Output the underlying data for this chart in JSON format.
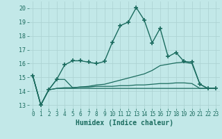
{
  "xlabel": "Humidex (Indice chaleur)",
  "background_color": "#c2e8e8",
  "grid_color": "#aad0d0",
  "line_color": "#1a6b5e",
  "xlim": [
    -0.5,
    23.5
  ],
  "ylim": [
    12.75,
    20.5
  ],
  "xticks": [
    0,
    1,
    2,
    3,
    4,
    5,
    6,
    7,
    8,
    9,
    10,
    11,
    12,
    13,
    14,
    15,
    16,
    17,
    18,
    19,
    20,
    21,
    22,
    23
  ],
  "yticks": [
    13,
    14,
    15,
    16,
    17,
    18,
    19,
    20
  ],
  "series": [
    {
      "x": [
        0,
        1,
        2,
        3,
        4,
        5,
        6,
        7,
        8,
        9,
        10,
        11,
        12,
        13,
        14,
        15,
        16,
        17,
        18,
        19,
        20,
        21,
        22,
        23
      ],
      "y": [
        15.1,
        13.0,
        14.1,
        14.85,
        15.9,
        16.2,
        16.2,
        16.1,
        16.0,
        16.15,
        17.55,
        18.75,
        19.0,
        20.05,
        19.15,
        17.5,
        18.55,
        16.5,
        16.8,
        16.15,
        16.1,
        14.5,
        14.2,
        14.2
      ],
      "marker": "+",
      "markersize": 4,
      "linewidth": 1.0,
      "markeredgewidth": 1.2
    },
    {
      "x": [
        0,
        1,
        2,
        3,
        4,
        5,
        6,
        7,
        8,
        9,
        10,
        11,
        12,
        13,
        14,
        15,
        16,
        17,
        18,
        19,
        20,
        21,
        22,
        23
      ],
      "y": [
        15.1,
        13.0,
        14.1,
        14.85,
        14.85,
        14.25,
        14.3,
        14.35,
        14.45,
        14.5,
        14.65,
        14.8,
        14.95,
        15.1,
        15.25,
        15.5,
        15.85,
        15.95,
        16.05,
        16.1,
        16.0,
        14.5,
        14.2,
        14.2
      ],
      "marker": null,
      "markersize": 0,
      "linewidth": 0.9,
      "markeredgewidth": 1.0
    },
    {
      "x": [
        0,
        1,
        2,
        3,
        4,
        5,
        6,
        7,
        8,
        9,
        10,
        11,
        12,
        13,
        14,
        15,
        16,
        17,
        18,
        19,
        20,
        21,
        22,
        23
      ],
      "y": [
        15.1,
        13.0,
        14.1,
        14.2,
        14.25,
        14.25,
        14.3,
        14.3,
        14.35,
        14.35,
        14.35,
        14.4,
        14.4,
        14.45,
        14.45,
        14.5,
        14.55,
        14.55,
        14.6,
        14.6,
        14.55,
        14.2,
        14.2,
        14.2
      ],
      "marker": null,
      "markersize": 0,
      "linewidth": 0.9,
      "markeredgewidth": 1.0
    },
    {
      "x": [
        0,
        1,
        2,
        3,
        4,
        5,
        6,
        7,
        8,
        9,
        10,
        11,
        12,
        13,
        14,
        15,
        16,
        17,
        18,
        19,
        20,
        21,
        22,
        23
      ],
      "y": [
        15.1,
        13.0,
        14.1,
        14.2,
        14.2,
        14.2,
        14.2,
        14.2,
        14.2,
        14.2,
        14.2,
        14.2,
        14.2,
        14.2,
        14.2,
        14.2,
        14.2,
        14.2,
        14.2,
        14.2,
        14.2,
        14.2,
        14.2,
        14.2
      ],
      "marker": null,
      "markersize": 0,
      "linewidth": 0.9,
      "markeredgewidth": 1.0
    }
  ]
}
